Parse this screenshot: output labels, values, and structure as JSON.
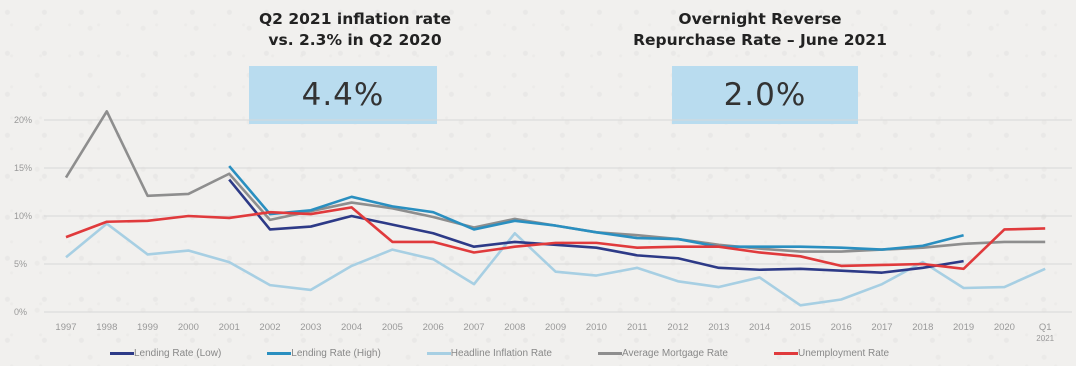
{
  "callouts": [
    {
      "title_line1": "Q2 2021 inflation rate",
      "title_line2": "vs. 2.3% in Q2 2020",
      "value": "4.4%"
    },
    {
      "title_line1": "Overnight Reverse",
      "title_line2": "Repurchase Rate – June 2021",
      "value": "2.0%"
    }
  ],
  "chart_data": {
    "type": "line",
    "x": [
      "1997",
      "1998",
      "1999",
      "2000",
      "2001",
      "2002",
      "2003",
      "2004",
      "2005",
      "2006",
      "2007",
      "2008",
      "2009",
      "2010",
      "2011",
      "2012",
      "2013",
      "2014",
      "2015",
      "2016",
      "2017",
      "2018",
      "2019",
      "2020",
      "Q1 2021"
    ],
    "x_tick_line1": [
      "1997",
      "1998",
      "1999",
      "2000",
      "2001",
      "2002",
      "2003",
      "2004",
      "2005",
      "2006",
      "2007",
      "2008",
      "2009",
      "2010",
      "2011",
      "2012",
      "2013",
      "2014",
      "2015",
      "2016",
      "2017",
      "2018",
      "2019",
      "2020",
      "Q1"
    ],
    "x_tick_line2": [
      "",
      "",
      "",
      "",
      "",
      "",
      "",
      "",
      "",
      "",
      "",
      "",
      "",
      "",
      "",
      "",
      "",
      "",
      "",
      "",
      "",
      "",
      "",
      "",
      "2021"
    ],
    "yticks": [
      "0%",
      "5%",
      "10%",
      "15%",
      "20%"
    ],
    "ylim": [
      0,
      20
    ],
    "grid": true,
    "legend_position": "bottom",
    "series": [
      {
        "name": "Lending Rate (Low)",
        "color": "#2d3a87",
        "values": [
          null,
          null,
          null,
          null,
          13.8,
          8.6,
          8.9,
          10.0,
          9.1,
          8.2,
          6.8,
          7.3,
          7.0,
          6.7,
          5.9,
          5.6,
          4.6,
          4.4,
          4.5,
          4.3,
          4.1,
          4.6,
          5.3,
          null,
          null
        ]
      },
      {
        "name": "Lending Rate (High)",
        "color": "#2a8fc0",
        "values": [
          null,
          null,
          null,
          null,
          15.2,
          10.2,
          10.6,
          12.0,
          11.0,
          10.4,
          8.6,
          9.5,
          9.0,
          8.3,
          7.7,
          7.6,
          6.8,
          6.8,
          6.8,
          6.7,
          6.5,
          6.9,
          8.0,
          null,
          null
        ]
      },
      {
        "name": "Headline Inflation Rate",
        "color": "#a7cfe3",
        "values": [
          5.7,
          9.2,
          6.0,
          6.4,
          5.2,
          2.8,
          2.3,
          4.8,
          6.5,
          5.5,
          2.9,
          8.2,
          4.2,
          3.8,
          4.6,
          3.2,
          2.6,
          3.6,
          0.7,
          1.3,
          2.9,
          5.2,
          2.5,
          2.6,
          4.5
        ]
      },
      {
        "name": "Average Mortgage Rate",
        "color": "#8e8e8e",
        "values": [
          14.0,
          20.9,
          12.1,
          12.3,
          14.4,
          9.6,
          10.5,
          11.4,
          10.8,
          9.9,
          8.8,
          9.7,
          9.0,
          8.3,
          8.0,
          7.6,
          7.0,
          6.6,
          6.3,
          6.3,
          6.5,
          6.7,
          7.1,
          7.3,
          7.3
        ]
      },
      {
        "name": "Unemployment Rate",
        "color": "#e03a3c",
        "values": [
          7.8,
          9.4,
          9.5,
          10.0,
          9.8,
          10.4,
          10.2,
          10.9,
          7.3,
          7.3,
          6.2,
          6.8,
          7.2,
          7.2,
          6.7,
          6.8,
          6.8,
          6.2,
          5.8,
          4.8,
          4.9,
          5.0,
          4.5,
          8.6,
          8.7
        ]
      }
    ]
  }
}
